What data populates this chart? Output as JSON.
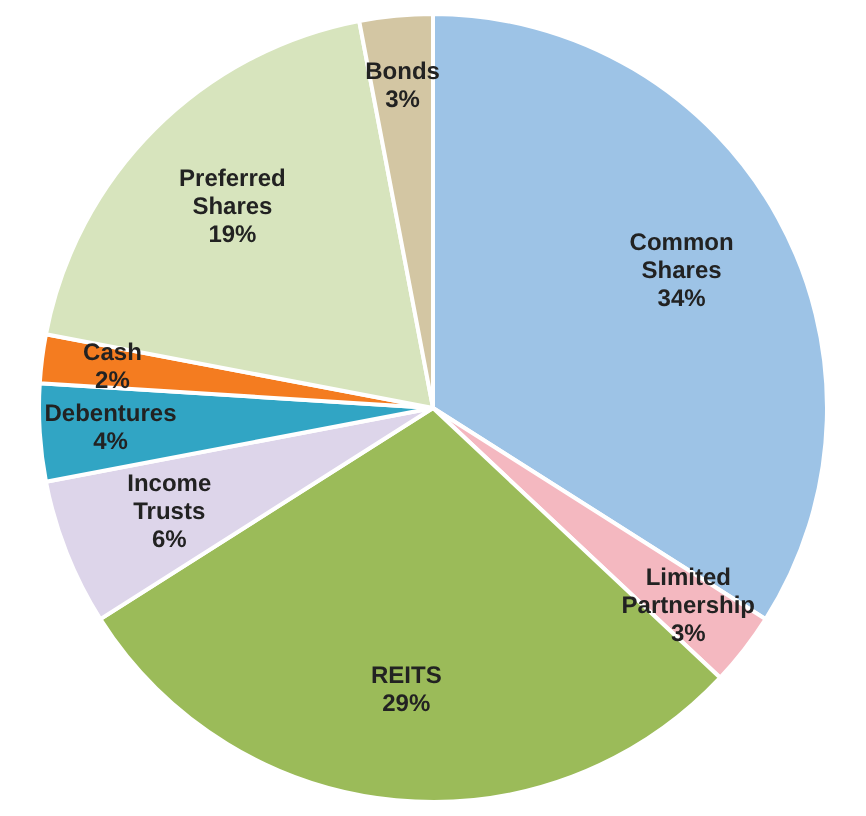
{
  "chart_data": {
    "type": "pie",
    "categories": [
      "Common Shares",
      "Limited Partnership",
      "REITS",
      "Income Trusts",
      "Debentures",
      "Cash",
      "Preferred Shares",
      "Bonds"
    ],
    "values": [
      34,
      3,
      29,
      6,
      4,
      2,
      19,
      3
    ],
    "colors": [
      "#9dc3e6",
      "#f4b8c0",
      "#9bbb59",
      "#ddd5ea",
      "#31a5c4",
      "#f47c20",
      "#d7e4bd",
      "#d3c6a3"
    ],
    "value_labels": [
      "34%",
      "3%",
      "29%",
      "6%",
      "4%",
      "2%",
      "19%",
      "3%"
    ],
    "legend": false
  }
}
